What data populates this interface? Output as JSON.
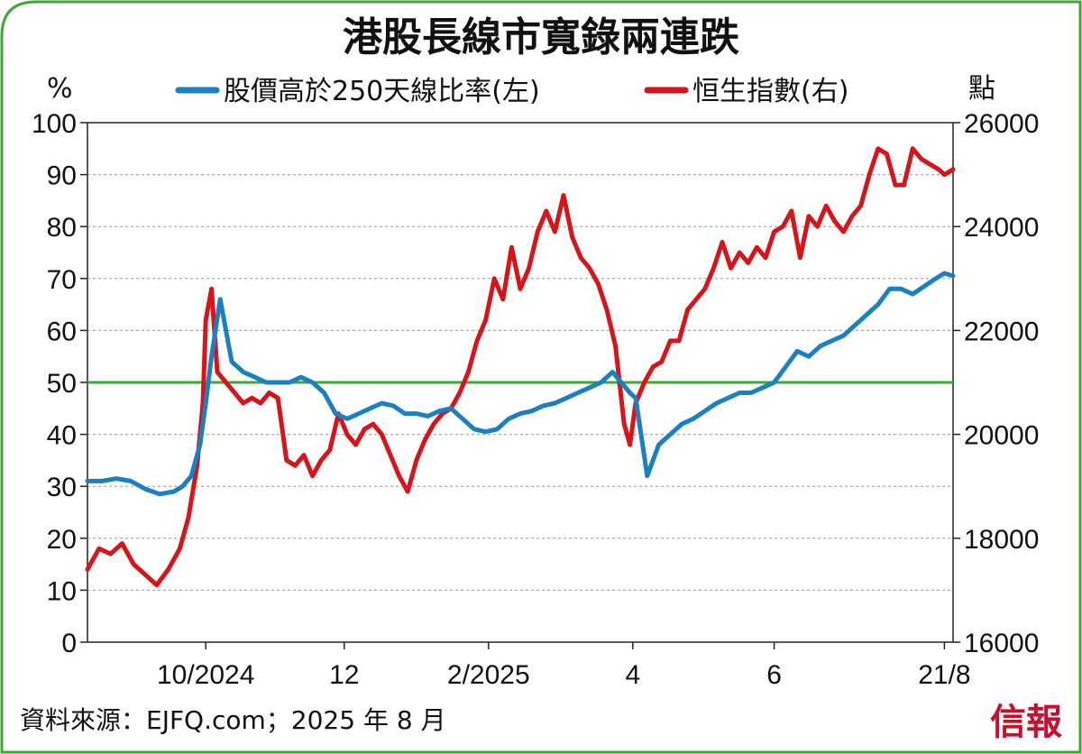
{
  "chart_data": {
    "type": "line",
    "title": "港股長線市寬錄兩連跌",
    "y_left_unit": "%",
    "y_right_unit": "點",
    "y_left_ticks": [
      0,
      10,
      20,
      30,
      40,
      50,
      60,
      70,
      80,
      90,
      100
    ],
    "y_right_ticks": [
      16000,
      18000,
      20000,
      22000,
      24000,
      26000
    ],
    "y_left_range": [
      0,
      100
    ],
    "y_right_range": [
      16000,
      26000
    ],
    "x_ticks": [
      "10/2024",
      "12",
      "2/2025",
      "4",
      "6",
      "21/8"
    ],
    "x_tick_positions": [
      4.1,
      8.9,
      13.9,
      18.9,
      23.8,
      29.7
    ],
    "x_range": [
      0,
      30
    ],
    "reference_line": {
      "axis": "left",
      "value": 50,
      "color": "#3aaa35"
    },
    "grid": "horizontal dashed",
    "legend_position": "top",
    "series": [
      {
        "name": "股價高於250天線比率(左)",
        "axis": "left",
        "color": "#1a80c0",
        "x": [
          0,
          0.5,
          1,
          1.5,
          2,
          2.5,
          3,
          3.3,
          3.6,
          3.9,
          4.1,
          4.3,
          4.6,
          5,
          5.4,
          5.8,
          6.2,
          6.6,
          7,
          7.4,
          7.8,
          8.2,
          8.6,
          9,
          9.4,
          9.8,
          10.2,
          10.6,
          11,
          11.4,
          11.8,
          12.2,
          12.6,
          13,
          13.4,
          13.8,
          14.2,
          14.6,
          15,
          15.4,
          15.8,
          16.2,
          16.6,
          17,
          17.4,
          17.8,
          18.2,
          18.5,
          18.8,
          19,
          19.4,
          19.8,
          20.2,
          20.6,
          21,
          21.4,
          21.8,
          22.2,
          22.6,
          23,
          23.4,
          23.8,
          24.2,
          24.6,
          25,
          25.4,
          25.8,
          26.2,
          26.6,
          27,
          27.4,
          27.8,
          28.2,
          28.6,
          29,
          29.4,
          29.7,
          30
        ],
        "values": [
          31,
          31,
          31.5,
          31,
          29.5,
          28.5,
          29,
          30,
          32,
          38,
          46,
          55,
          66,
          54,
          52,
          51,
          50,
          50,
          50,
          51,
          50,
          48,
          44,
          43,
          44,
          45,
          46,
          45.5,
          44,
          44,
          43.5,
          44.5,
          45,
          43,
          41,
          40.5,
          41,
          43,
          44,
          44.5,
          45.5,
          46,
          47,
          48,
          49,
          50,
          52,
          50,
          48,
          47,
          32,
          38,
          40,
          42,
          43,
          44.5,
          46,
          47,
          48,
          48,
          49,
          50,
          53,
          56,
          55,
          57,
          58,
          59,
          61,
          63,
          65,
          68,
          68,
          67,
          68.5,
          70,
          71,
          70.5
        ]
      },
      {
        "name": "恒生指數(右)",
        "axis": "right",
        "color": "#d7141a",
        "x": [
          0,
          0.4,
          0.8,
          1.2,
          1.6,
          2,
          2.4,
          2.8,
          3.2,
          3.5,
          3.8,
          4.0,
          4.1,
          4.3,
          4.5,
          4.8,
          5.1,
          5.4,
          5.7,
          6,
          6.3,
          6.6,
          6.9,
          7.2,
          7.5,
          7.8,
          8.1,
          8.4,
          8.7,
          9,
          9.3,
          9.6,
          9.9,
          10.2,
          10.5,
          10.8,
          11.1,
          11.4,
          11.7,
          12,
          12.3,
          12.6,
          12.9,
          13.2,
          13.5,
          13.8,
          14.1,
          14.4,
          14.7,
          15,
          15.3,
          15.6,
          15.9,
          16.2,
          16.5,
          16.8,
          17.1,
          17.4,
          17.7,
          18,
          18.3,
          18.6,
          18.8,
          19,
          19.3,
          19.6,
          19.9,
          20.2,
          20.5,
          20.8,
          21.1,
          21.4,
          21.7,
          22,
          22.3,
          22.6,
          22.9,
          23.2,
          23.5,
          23.8,
          24.1,
          24.4,
          24.7,
          25,
          25.3,
          25.6,
          25.9,
          26.2,
          26.5,
          26.8,
          27.1,
          27.4,
          27.7,
          28,
          28.3,
          28.6,
          28.9,
          29.2,
          29.5,
          29.7,
          30
        ],
        "values": [
          17400,
          17800,
          17700,
          17900,
          17500,
          17300,
          17100,
          17400,
          17800,
          18400,
          19400,
          20600,
          22200,
          22800,
          21200,
          21000,
          20800,
          20600,
          20700,
          20600,
          20800,
          20700,
          19500,
          19400,
          19600,
          19200,
          19500,
          19700,
          20400,
          20000,
          19800,
          20100,
          20200,
          20000,
          19600,
          19200,
          18900,
          19500,
          19900,
          20200,
          20400,
          20500,
          20800,
          21200,
          21800,
          22200,
          23000,
          22600,
          23600,
          22800,
          23200,
          23900,
          24300,
          23900,
          24600,
          23800,
          23400,
          23200,
          22900,
          22400,
          21700,
          20200,
          19800,
          20600,
          21000,
          21300,
          21400,
          21800,
          21800,
          22400,
          22600,
          22800,
          23200,
          23700,
          23200,
          23500,
          23300,
          23600,
          23400,
          23900,
          24000,
          24300,
          23400,
          24200,
          24000,
          24400,
          24100,
          23900,
          24200,
          24400,
          25000,
          25500,
          25400,
          24800,
          24800,
          25500,
          25300,
          25200,
          25100,
          25000,
          25100
        ]
      }
    ]
  },
  "source": "資料來源：EJFQ.com；2025 年 8 月",
  "brand": "信報"
}
